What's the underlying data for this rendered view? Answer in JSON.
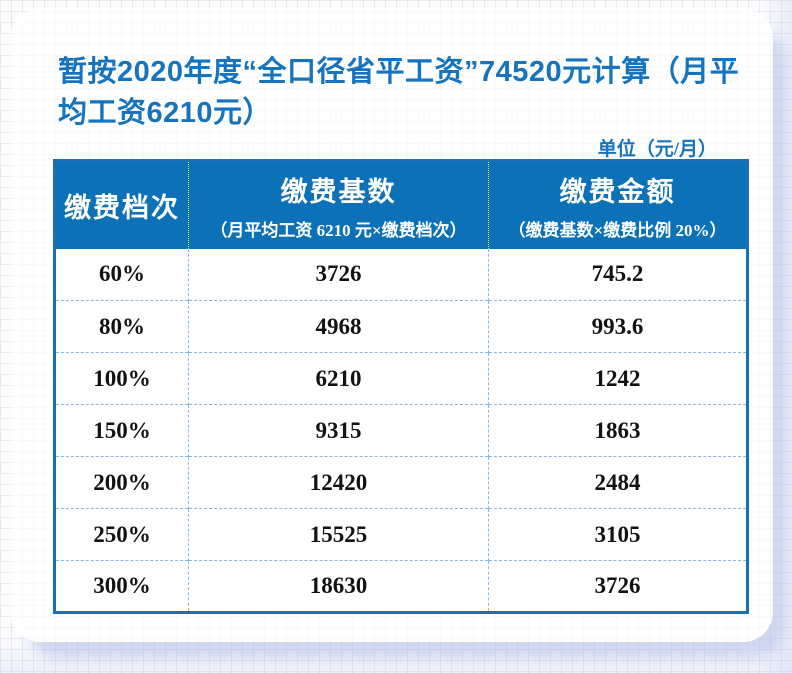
{
  "title": {
    "text": "暂按2020年度“全口径省平工资”74520元计算（月平均工资6210元）"
  },
  "unit_label": "单位（元/月）",
  "table": {
    "headers": {
      "col1": {
        "title": "缴费档次"
      },
      "col2": {
        "title": "缴费基数",
        "subtitle": "（月平均工资 6210 元×缴费档次）"
      },
      "col3": {
        "title": "缴费金额",
        "subtitle": "（缴费基数×缴费比例 20%）"
      }
    },
    "rows": [
      {
        "level": "60%",
        "base": "3726",
        "amount": "745.2"
      },
      {
        "level": "80%",
        "base": "4968",
        "amount": "993.6"
      },
      {
        "level": "100%",
        "base": "6210",
        "amount": "1242"
      },
      {
        "level": "150%",
        "base": "9315",
        "amount": "1863"
      },
      {
        "level": "200%",
        "base": "12420",
        "amount": "2484"
      },
      {
        "level": "250%",
        "base": "15525",
        "amount": "3105"
      },
      {
        "level": "300%",
        "base": "18630",
        "amount": "3726"
      }
    ]
  },
  "colors": {
    "title_blue": "#1673bd",
    "header_background": "#0d71b8",
    "table_border": "#1a6fb5",
    "divider_dash": "#8ab6e2",
    "data_text": "#121212",
    "grid_line": "#e7e9f1",
    "card_shadow": "#adbce6"
  }
}
